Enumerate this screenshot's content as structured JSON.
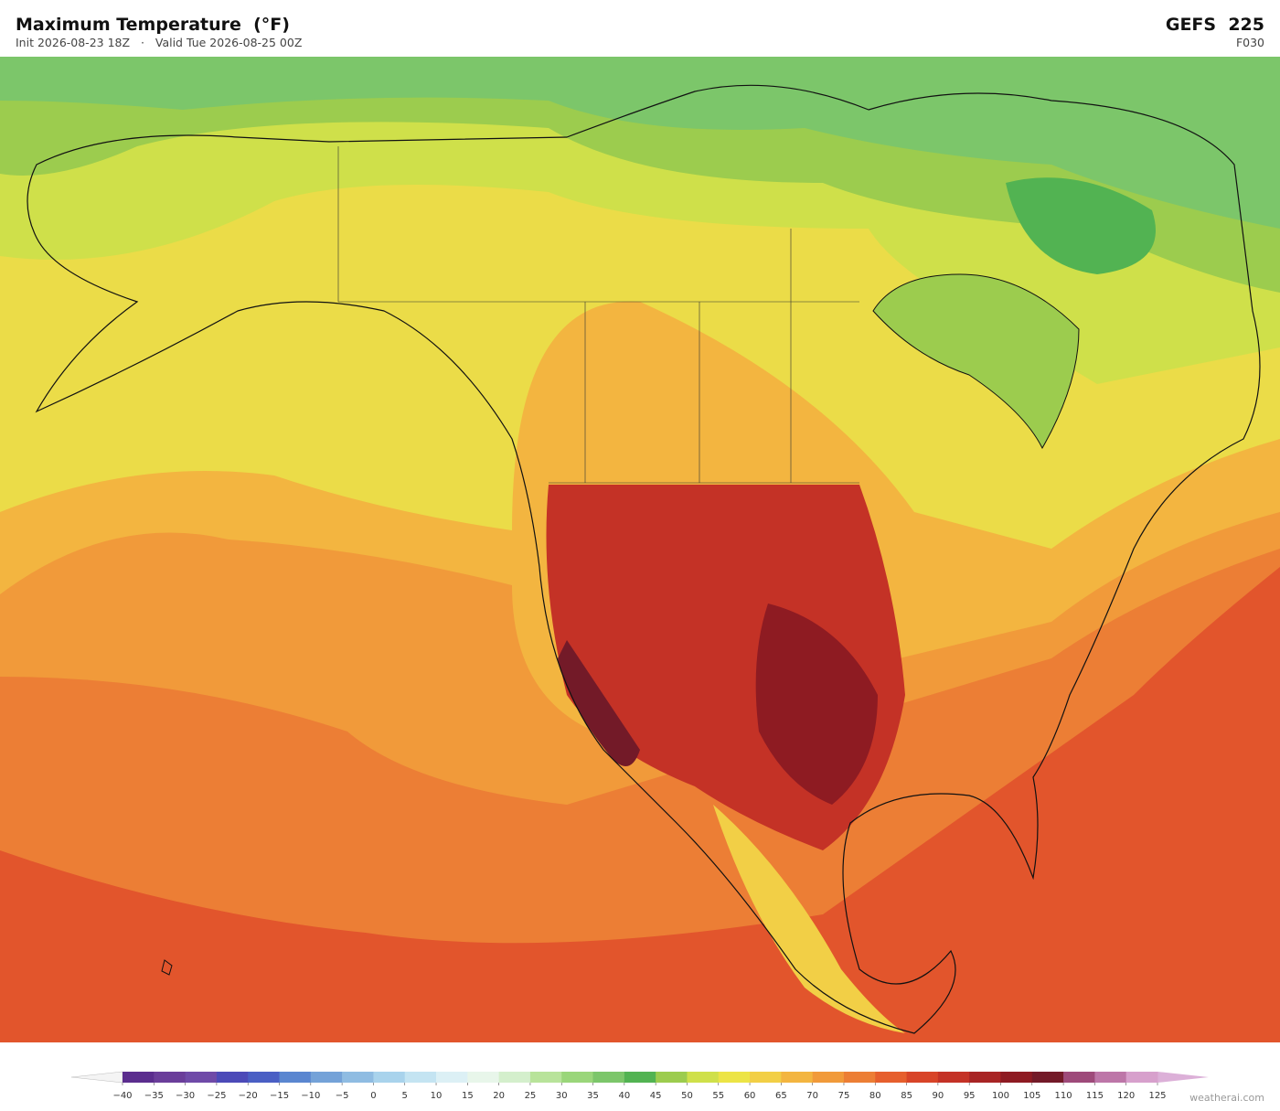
{
  "header": {
    "title": "Maximum Temperature  (°F)",
    "init": "Init 2026-08-23 18Z",
    "separator": "·",
    "valid": "Valid Tue 2026-08-25 00Z",
    "model": "GEFS  225",
    "forecast_hour": "F030"
  },
  "colorbar": {
    "ticks": [
      {
        "value": -40,
        "label": "−40"
      },
      {
        "value": -35,
        "label": "−35"
      },
      {
        "value": -30,
        "label": "−30"
      },
      {
        "value": -25,
        "label": "−25"
      },
      {
        "value": -20,
        "label": "−20"
      },
      {
        "value": -15,
        "label": "−15"
      },
      {
        "value": -10,
        "label": "−10"
      },
      {
        "value": -5,
        "label": "−5"
      },
      0,
      5,
      10,
      15,
      20,
      25,
      30,
      35,
      40,
      45,
      50,
      55,
      60,
      65,
      70,
      75,
      80,
      85,
      90,
      95,
      100,
      105,
      110,
      115,
      120,
      125
    ],
    "colors": [
      "#5b2d8e",
      "#6a3d9a",
      "#6f4aa8",
      "#4c4ab8",
      "#4a5fc4",
      "#5a86d0",
      "#74a2d8",
      "#8fbce2",
      "#a9d3ec",
      "#c4e4f2",
      "#dcf0f5",
      "#e8f6ea",
      "#d4efcc",
      "#b8e39a",
      "#9ad67a",
      "#7cc66a",
      "#52b352",
      "#9ccc4e",
      "#cfe04a",
      "#ece446",
      "#f2cf46",
      "#f3b540",
      "#f19a3a",
      "#ec7e35",
      "#e65f2d",
      "#d84428",
      "#c43226",
      "#a82424",
      "#8e1b22",
      "#731a28",
      "#9e4a7a",
      "#bd76a8",
      "#d7a0cc"
    ],
    "under_color": "#f4f4f4",
    "over_color": "#dcb0d8"
  },
  "watermark": "weatherai.com"
}
